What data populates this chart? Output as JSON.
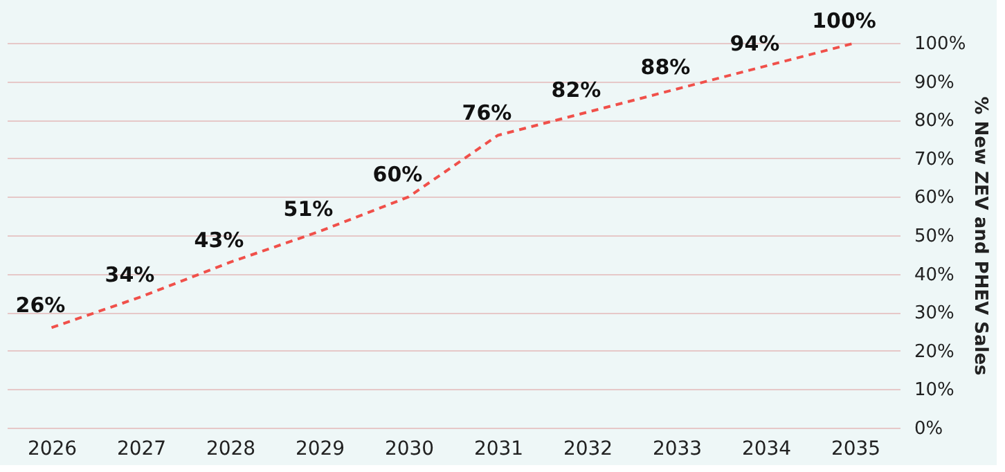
{
  "chart_data": {
    "type": "line",
    "ylabel": "% New ZEV and PHEV Sales",
    "categories": [
      "2026",
      "2027",
      "2028",
      "2029",
      "2030",
      "2031",
      "2032",
      "2033",
      "2034",
      "2035"
    ],
    "series": [
      {
        "color": "#f0504a",
        "values": [
          26,
          34,
          43,
          51,
          60,
          76,
          82,
          88,
          94,
          100
        ],
        "value_labels": [
          "26%",
          "34%",
          "43%",
          "51%",
          "60%",
          "76%",
          "82%",
          "88%",
          "94%",
          "100%"
        ]
      }
    ],
    "ylim": [
      0,
      100
    ],
    "yticks": [
      {
        "value": 0,
        "label": "0%"
      },
      {
        "value": 10,
        "label": "10%"
      },
      {
        "value": 20,
        "label": "20%"
      },
      {
        "value": 30,
        "label": "30%"
      },
      {
        "value": 40,
        "label": "40%"
      },
      {
        "value": 50,
        "label": "50%"
      },
      {
        "value": 60,
        "label": "60%"
      },
      {
        "value": 70,
        "label": "70%"
      },
      {
        "value": 80,
        "label": "80%"
      },
      {
        "value": 90,
        "label": "90%"
      },
      {
        "value": 100,
        "label": "100%"
      }
    ],
    "grid": "y",
    "line_style": "dashed",
    "marker": "none"
  }
}
